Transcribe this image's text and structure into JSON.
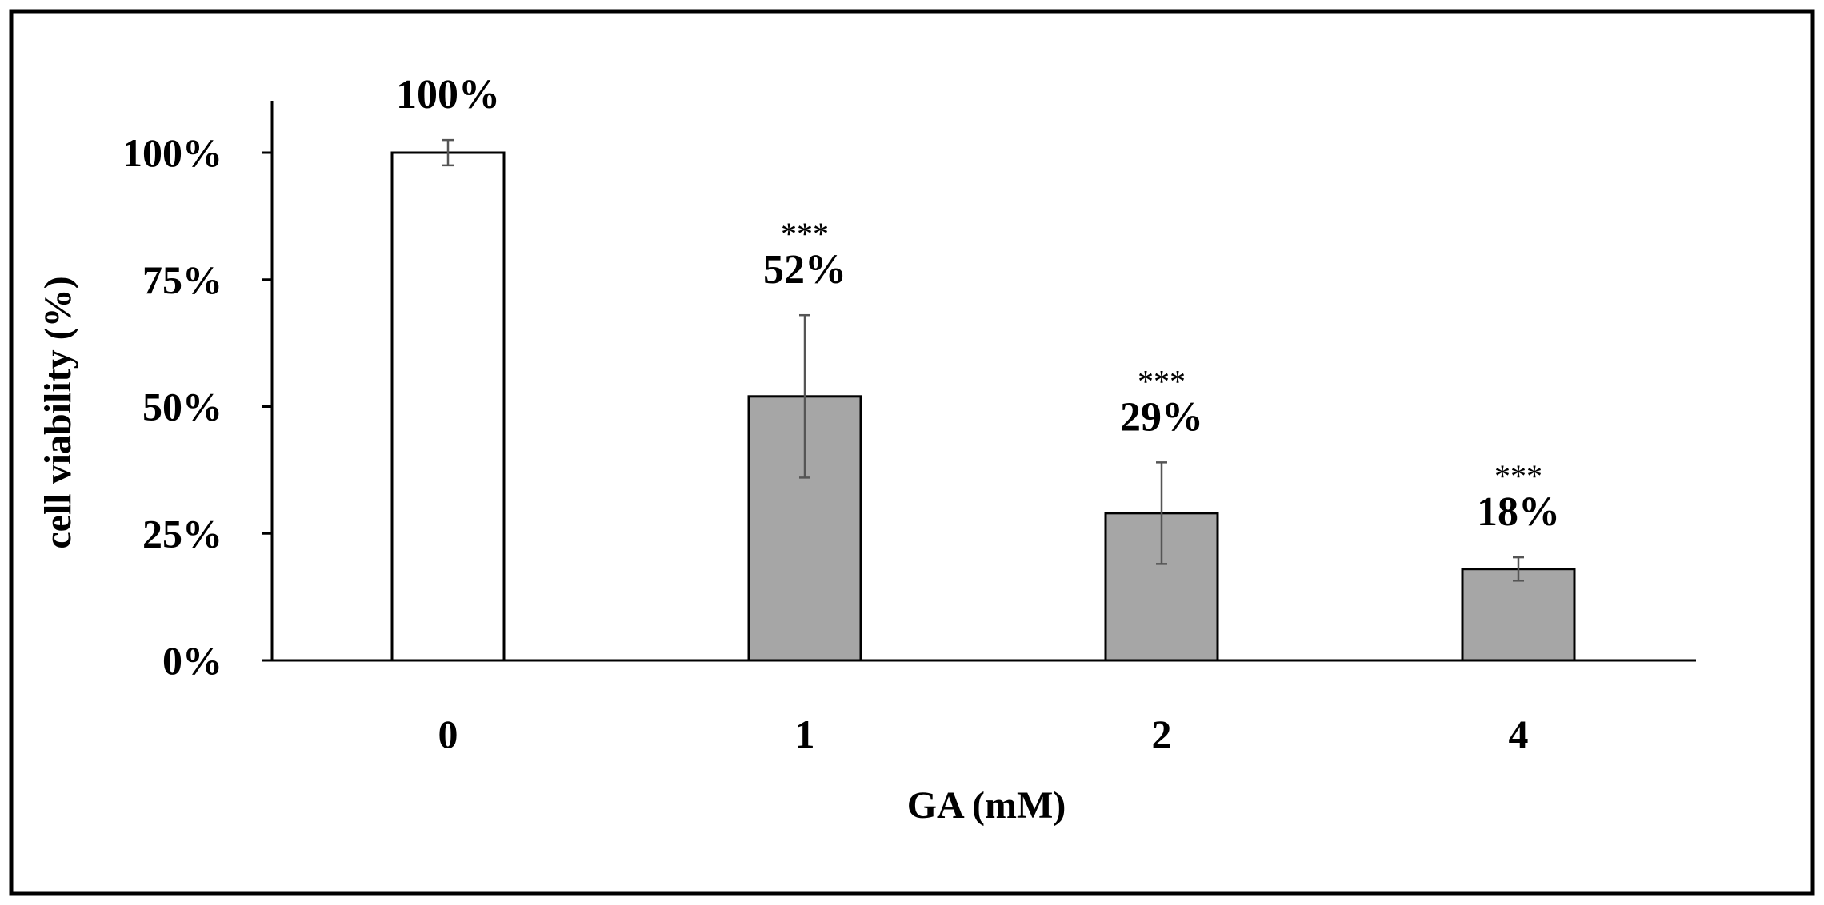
{
  "chart_data": {
    "type": "bar",
    "title": "",
    "xlabel": "GA (mM)",
    "ylabel": "cell viability (%)",
    "categories": [
      "0",
      "1",
      "2",
      "4"
    ],
    "values": [
      100,
      52,
      29,
      18
    ],
    "errors": [
      2.5,
      16,
      10,
      2.3
    ],
    "value_labels": [
      "100%",
      "52%",
      "29%",
      "18%"
    ],
    "significance": [
      "",
      "***",
      "***",
      "***"
    ],
    "bar_colors": [
      "#ffffff",
      "#a6a6a6",
      "#a6a6a6",
      "#a6a6a6"
    ],
    "ylim": [
      0,
      110
    ],
    "yticks": [
      0,
      25,
      50,
      75,
      100
    ],
    "ytick_labels": [
      "0%",
      "25%",
      "50%",
      "75%",
      "100%"
    ],
    "grid": false,
    "legend": "none"
  }
}
